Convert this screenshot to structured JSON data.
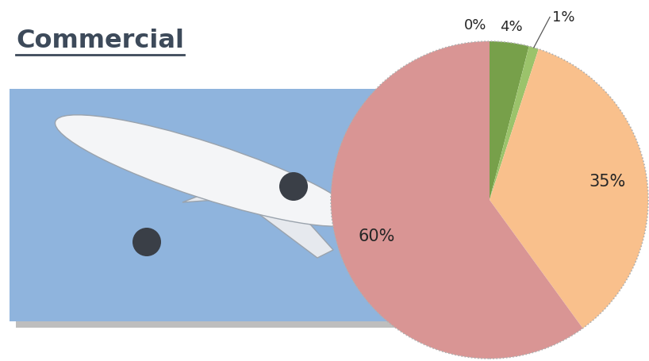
{
  "chart_data": {
    "type": "pie",
    "title": "Commercial",
    "values": [
      0,
      4,
      1,
      35,
      60
    ],
    "value_labels": [
      "0%",
      "4%",
      "1%",
      "35%",
      "60%"
    ],
    "colors": [
      "#5f8a36",
      "#77a04a",
      "#9bc36b",
      "#f9c08c",
      "#d99594"
    ],
    "data_labels": true
  }
}
